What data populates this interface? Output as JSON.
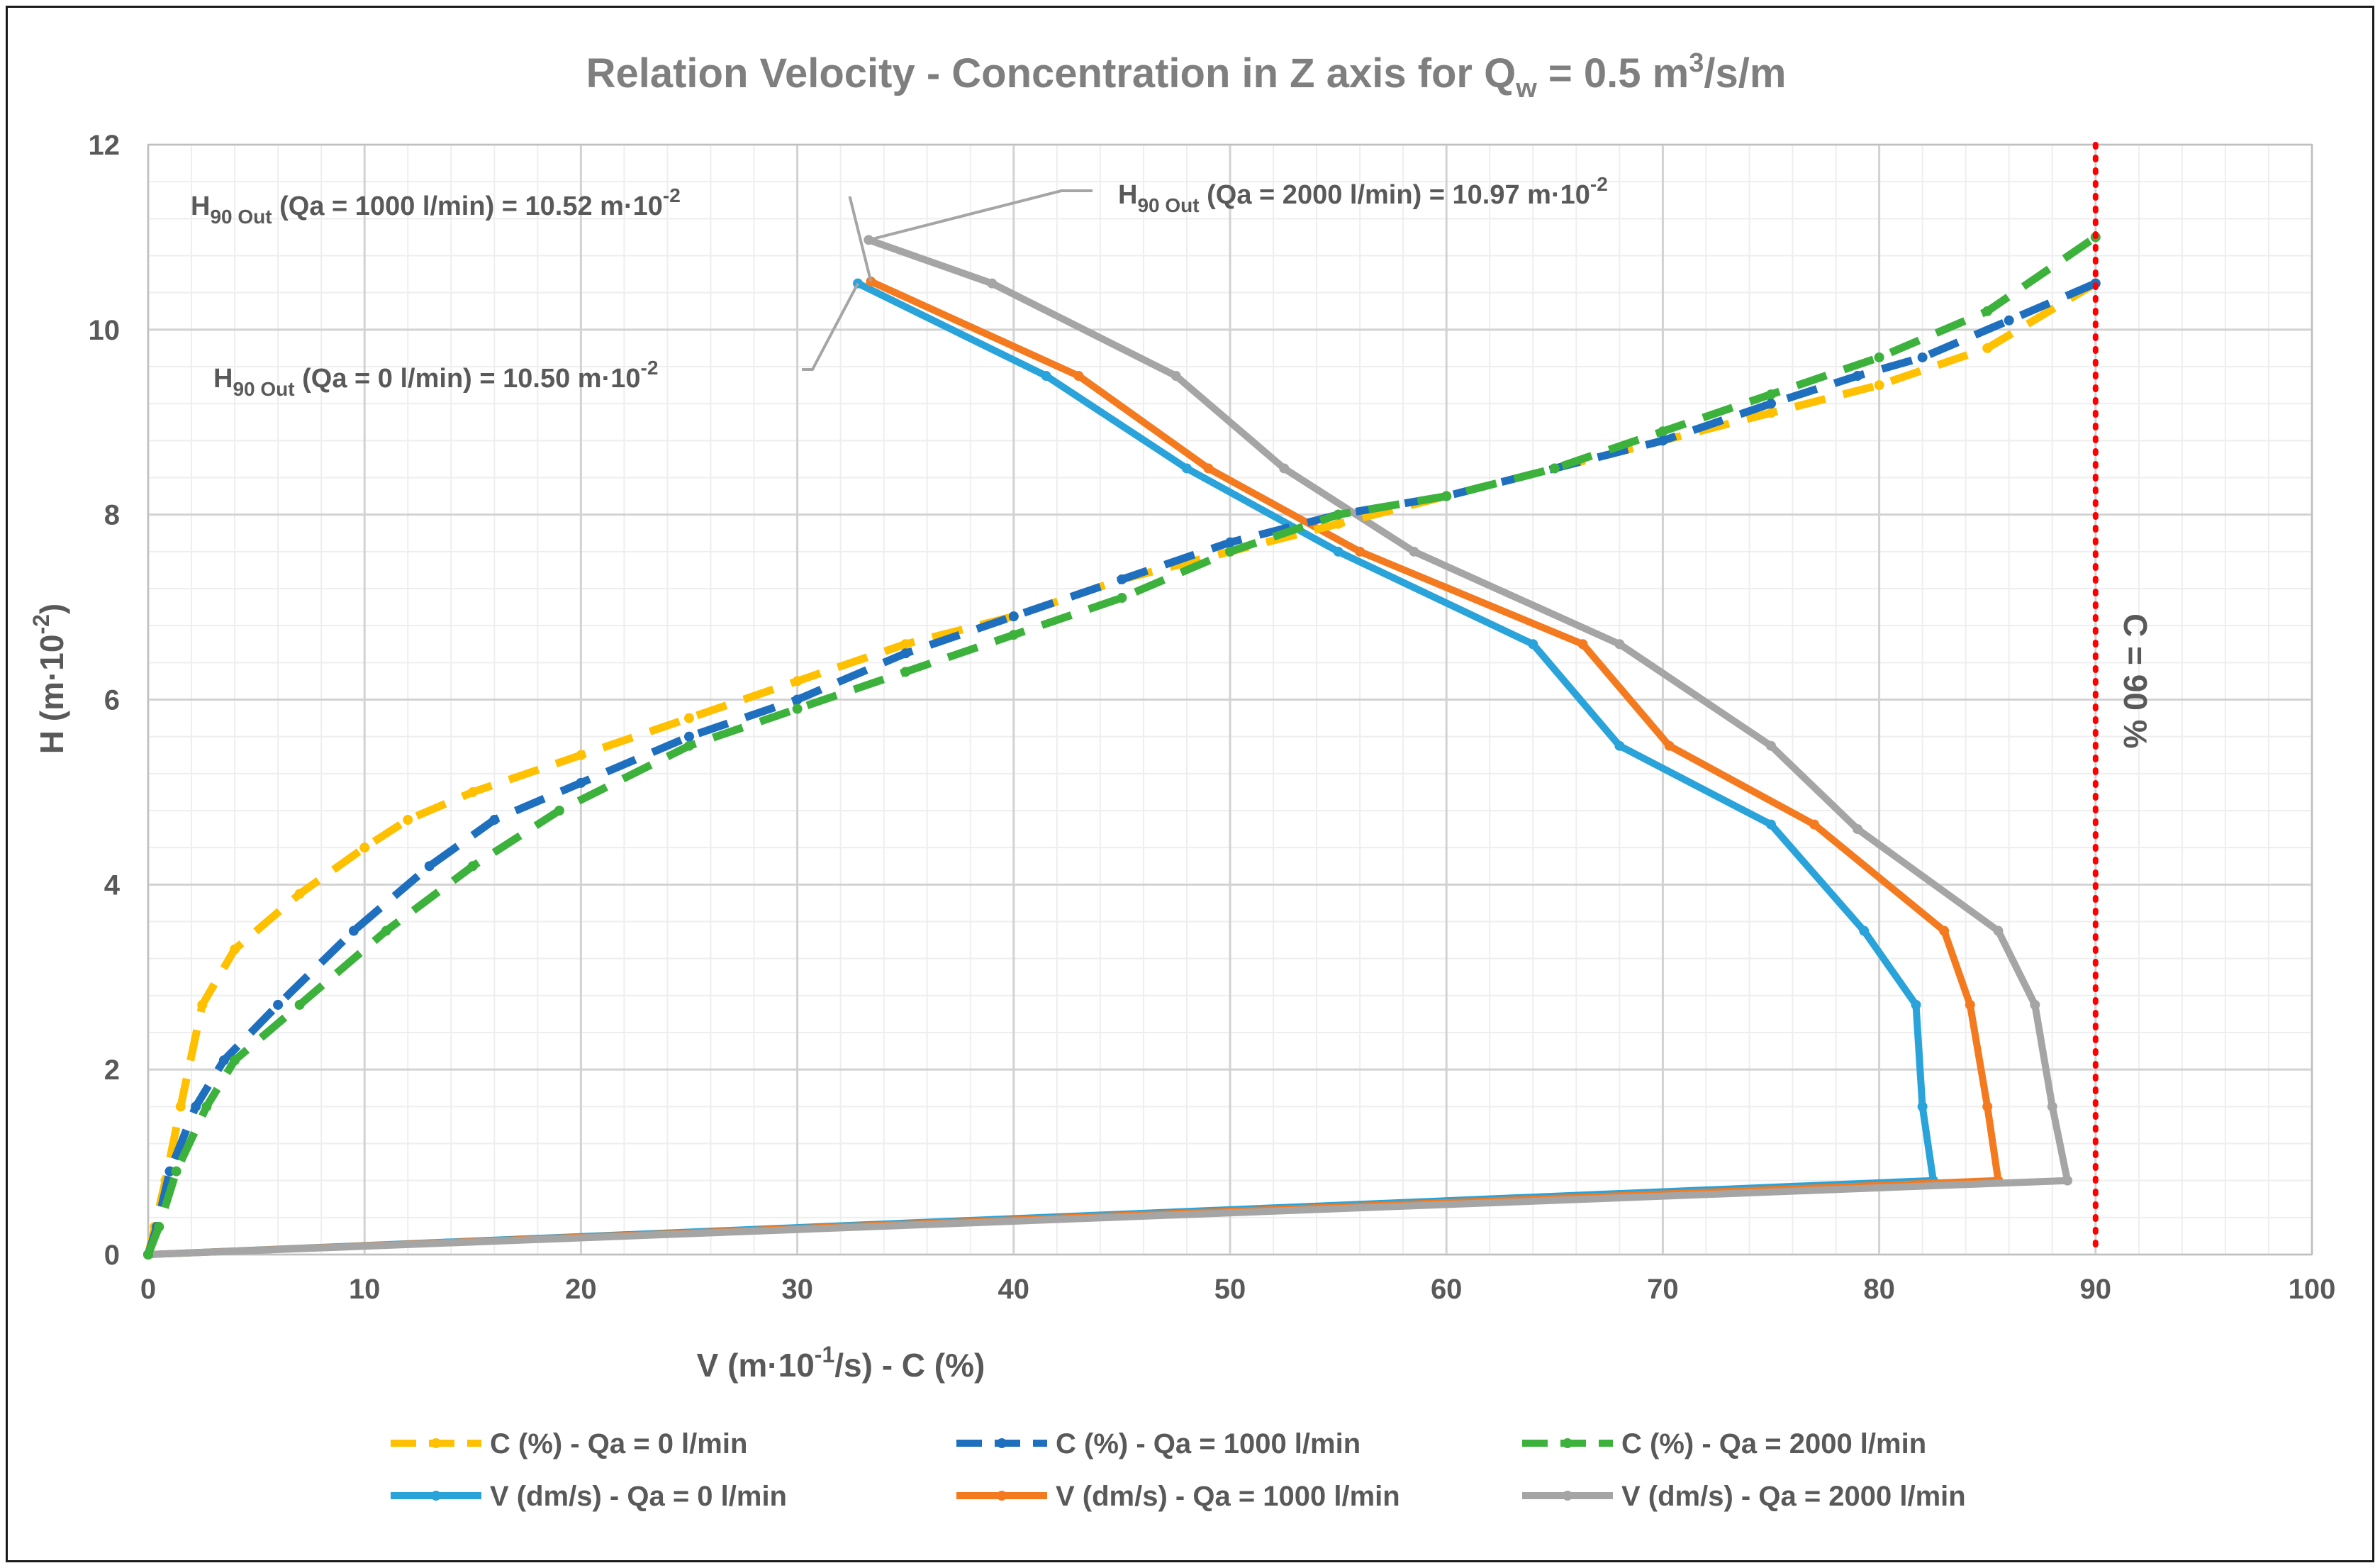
{
  "chart_data": {
    "type": "line",
    "title": {
      "main": "Relation Velocity - Concentration in Z axis for Q",
      "sub": "w",
      "mid": " = 0.5 m",
      "sup": "3",
      "end": "/s/m"
    },
    "xlabel": {
      "pre": "V (m·10",
      "sup": "-1",
      "post": "/s) - C (%)"
    },
    "ylabel": {
      "pre": "H (m·10",
      "sup": "-2",
      "post": ")"
    },
    "xlim": [
      0,
      100
    ],
    "ylim": [
      0,
      12
    ],
    "x_ticks": [
      0,
      10,
      20,
      30,
      40,
      50,
      60,
      70,
      80,
      90,
      100
    ],
    "y_ticks": [
      0,
      2,
      4,
      6,
      8,
      10,
      12
    ],
    "grid": true,
    "legend_position": "bottom",
    "series": [
      {
        "name": "C (%) - Qa = 0 l/min",
        "style": "dash",
        "color": "#FFC000",
        "x": [
          0,
          0.3,
          0.8,
          1.5,
          2.5,
          4,
          7,
          10,
          12,
          15,
          20,
          25,
          30,
          35,
          40,
          45,
          50,
          55,
          60,
          65,
          70,
          75,
          80,
          85,
          90
        ],
        "y": [
          0,
          0.3,
          0.8,
          1.6,
          2.7,
          3.3,
          3.9,
          4.4,
          4.7,
          5.0,
          5.4,
          5.8,
          6.2,
          6.6,
          6.9,
          7.3,
          7.6,
          7.9,
          8.2,
          8.5,
          8.8,
          9.1,
          9.4,
          9.8,
          10.5
        ]
      },
      {
        "name": "C (%) - Qa = 1000 l/min",
        "style": "dash",
        "color": "#1F6FBF",
        "x": [
          0,
          0.4,
          1,
          2.2,
          3.5,
          6,
          9.5,
          13,
          16,
          20,
          25,
          30,
          35,
          40,
          45,
          50,
          55,
          60,
          65,
          70,
          75,
          79,
          82,
          86,
          90
        ],
        "y": [
          0,
          0.3,
          0.9,
          1.6,
          2.1,
          2.7,
          3.5,
          4.2,
          4.7,
          5.1,
          5.6,
          6.0,
          6.5,
          6.9,
          7.3,
          7.7,
          8.0,
          8.2,
          8.5,
          8.8,
          9.2,
          9.5,
          9.7,
          10.1,
          10.5
        ]
      },
      {
        "name": "C (%) - Qa = 2000 l/min",
        "style": "dash",
        "color": "#3CB23C",
        "x": [
          0,
          0.5,
          1.3,
          2.7,
          4,
          7,
          11,
          15,
          19,
          25,
          30,
          35,
          40,
          45,
          50,
          55,
          60,
          65,
          70,
          75,
          80,
          85,
          90
        ],
        "y": [
          0,
          0.3,
          0.9,
          1.6,
          2.1,
          2.7,
          3.5,
          4.2,
          4.8,
          5.5,
          5.9,
          6.3,
          6.7,
          7.1,
          7.6,
          8.0,
          8.2,
          8.5,
          8.9,
          9.3,
          9.7,
          10.2,
          11.0
        ]
      },
      {
        "name": "V (dm/s) - Qa = 0 l/min",
        "style": "solid",
        "color": "#29A3DA",
        "x": [
          0,
          82.5,
          82,
          81.7,
          79.3,
          75,
          68,
          64,
          55,
          48,
          41.5,
          32.8
        ],
        "y": [
          0,
          0.8,
          1.6,
          2.7,
          3.5,
          4.65,
          5.5,
          6.6,
          7.6,
          8.5,
          9.5,
          10.5
        ]
      },
      {
        "name": "V (dm/s) - Qa = 1000 l/min",
        "style": "solid",
        "color": "#F47A20",
        "x": [
          0,
          85.5,
          85,
          84.2,
          83,
          77,
          70.3,
          66.3,
          56,
          49,
          43,
          33.4
        ],
        "y": [
          0,
          0.8,
          1.6,
          2.7,
          3.5,
          4.65,
          5.5,
          6.6,
          7.6,
          8.5,
          9.5,
          10.52
        ]
      },
      {
        "name": "V (dm/s) - Qa = 2000 l/min",
        "style": "solid",
        "color": "#A5A5A5",
        "x": [
          0,
          88.7,
          88,
          87.2,
          85.5,
          79,
          75,
          68,
          58.5,
          52.5,
          47.5,
          39,
          33.3
        ],
        "y": [
          0,
          0.8,
          1.6,
          2.7,
          3.5,
          4.6,
          5.5,
          6.6,
          7.6,
          8.5,
          9.5,
          10.5,
          10.97
        ]
      }
    ],
    "reference_line": {
      "x": 90,
      "color": "#FF0000",
      "label": "C = 90 %"
    },
    "annotations": [
      {
        "id": "qa1000",
        "pre": "H",
        "sub": "90 Out",
        "text": " (Qa = 1000 l/min) = 10.52 m·10",
        "sup": "-2",
        "point": [
          33.4,
          10.52
        ]
      },
      {
        "id": "qa2000",
        "pre": "H",
        "sub": "90 Out",
        "text": " (Qa = 2000 l/min) = 10.97 m·10",
        "sup": "-2",
        "point": [
          33.3,
          10.97
        ]
      },
      {
        "id": "qa0",
        "pre": "H",
        "sub": "90 Out",
        "text": " (Qa = 0 l/min) = 10.50 m·10",
        "sup": "-2",
        "point": [
          32.8,
          10.5
        ]
      }
    ]
  }
}
